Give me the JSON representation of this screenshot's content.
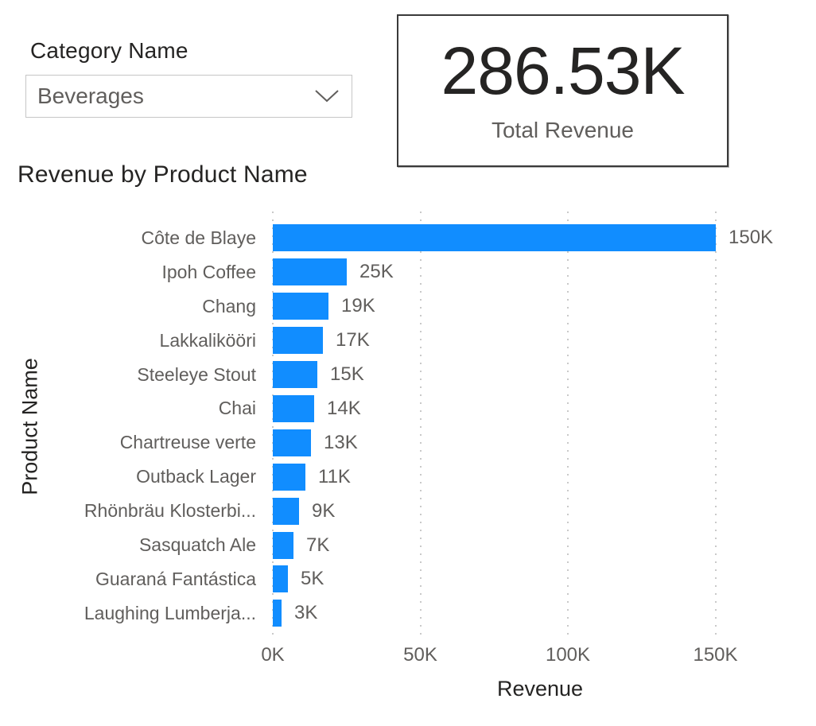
{
  "slicer": {
    "header": "Category Name",
    "value": "Beverages"
  },
  "card": {
    "value": "286.53K",
    "label": "Total Revenue"
  },
  "chart": {
    "title": "Revenue by Product Name",
    "x_axis_title": "Revenue",
    "y_axis_title": "Product Name"
  },
  "chart_data": {
    "type": "bar",
    "orientation": "horizontal",
    "title": "Revenue by Product Name",
    "xlabel": "Revenue",
    "ylabel": "Product Name",
    "categories": [
      "Côte de Blaye",
      "Ipoh Coffee",
      "Chang",
      "Lakkalikööri",
      "Steeleye Stout",
      "Chai",
      "Chartreuse verte",
      "Outback Lager",
      "Rhönbräu Klosterbi...",
      "Sasquatch Ale",
      "Guaraná Fantástica",
      "Laughing Lumberja..."
    ],
    "values": [
      150000,
      25000,
      19000,
      17000,
      15000,
      14000,
      13000,
      11000,
      9000,
      7000,
      5000,
      3000
    ],
    "data_labels": [
      "150K",
      "25K",
      "19K",
      "17K",
      "15K",
      "14K",
      "13K",
      "11K",
      "9K",
      "7K",
      "5K",
      "3K"
    ],
    "x_ticks": {
      "values": [
        0,
        50000,
        100000,
        150000
      ],
      "labels": [
        "0K",
        "50K",
        "100K",
        "150K"
      ]
    },
    "xlim": [
      0,
      180000
    ],
    "grid": "vertical-dotted",
    "legend": "none",
    "bar_color": "#118dff"
  },
  "colors": {
    "accent": "#118dff",
    "text_dark": "#252423",
    "text_gray": "#605e5c",
    "dropdown_border": "#c6c6c6",
    "card_border": "#3a3a3a",
    "gridline": "#c9c9c9"
  }
}
